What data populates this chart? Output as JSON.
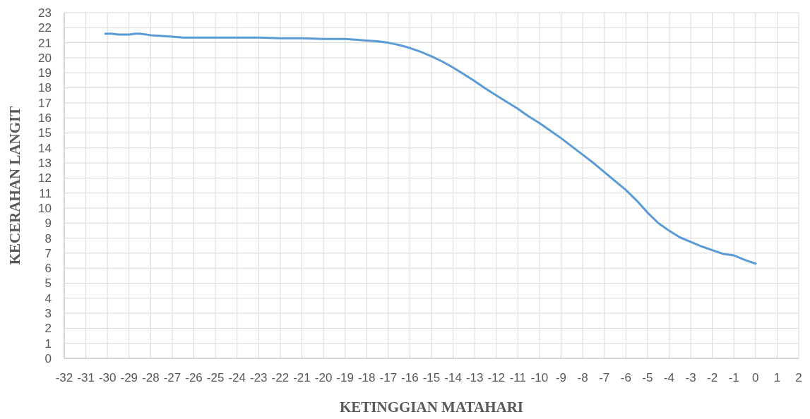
{
  "chart_data": {
    "type": "line",
    "xlabel": "KETINGGIAN MATAHARI",
    "ylabel": "KECERAHAN LANGIT",
    "xlim": [
      -32,
      2
    ],
    "xticks": [
      -32,
      -31,
      -30,
      -29,
      -28,
      -27,
      -26,
      -25,
      -24,
      -23,
      -22,
      -21,
      -20,
      -19,
      -18,
      -17,
      -16,
      -15,
      -14,
      -13,
      -12,
      -11,
      -10,
      -9,
      -8,
      -7,
      -6,
      -5,
      -4,
      -3,
      -2,
      -1,
      0,
      1,
      2
    ],
    "ylim": [
      0,
      23
    ],
    "yticks": [
      0,
      1,
      2,
      3,
      4,
      5,
      6,
      7,
      8,
      9,
      10,
      11,
      12,
      13,
      14,
      15,
      16,
      17,
      18,
      19,
      20,
      21,
      22,
      23
    ],
    "grid": true,
    "marker": "none",
    "line_style": "solid",
    "series": [
      {
        "color": "#5b9bd5",
        "x": [
          -30.1,
          -29.8,
          -29.5,
          -29,
          -28.7,
          -28.5,
          -28.2,
          -28,
          -27.5,
          -27,
          -26.5,
          -26,
          -25,
          -24,
          -23,
          -22,
          -21,
          -20,
          -19,
          -18.5,
          -18,
          -17.5,
          -17,
          -16.5,
          -16,
          -15.5,
          -15,
          -14.5,
          -14,
          -13.5,
          -13,
          -12.5,
          -12,
          -11.5,
          -11,
          -10.5,
          -10,
          -9.5,
          -9,
          -8.5,
          -8,
          -7.5,
          -7,
          -6.5,
          -6,
          -5.5,
          -5,
          -4.5,
          -4,
          -3.5,
          -3,
          -2.5,
          -2,
          -1.5,
          -1,
          -0.5,
          0
        ],
        "values": [
          21.6,
          21.6,
          21.55,
          21.55,
          21.6,
          21.6,
          21.55,
          21.5,
          21.45,
          21.4,
          21.35,
          21.35,
          21.35,
          21.35,
          21.35,
          21.3,
          21.3,
          21.25,
          21.25,
          21.2,
          21.15,
          21.1,
          21.0,
          20.85,
          20.65,
          20.4,
          20.1,
          19.75,
          19.35,
          18.9,
          18.45,
          17.95,
          17.5,
          17.05,
          16.6,
          16.1,
          15.65,
          15.15,
          14.65,
          14.1,
          13.55,
          13.0,
          12.4,
          11.8,
          11.2,
          10.5,
          9.7,
          9.0,
          8.5,
          8.05,
          7.75,
          7.45,
          7.2,
          6.95,
          6.85,
          6.55,
          6.3
        ]
      }
    ]
  }
}
